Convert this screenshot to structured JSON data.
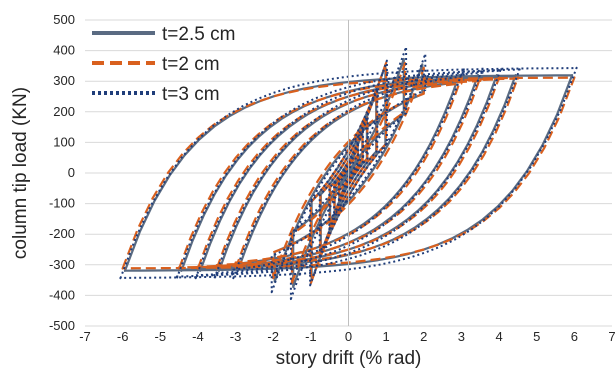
{
  "chart_data": {
    "type": "line",
    "title": "",
    "xlabel": "story drift (% rad)",
    "ylabel": "column tip load (KN)",
    "xlim": [
      -7,
      7
    ],
    "ylim": [
      -500,
      500
    ],
    "x_ticks": [
      "-7",
      "-6",
      "-5",
      "-4",
      "-3",
      "-2",
      "-1",
      "0",
      "1",
      "2",
      "3",
      "4",
      "5",
      "6",
      "7"
    ],
    "y_ticks": [
      "500",
      "400",
      "300",
      "200",
      "100",
      "0",
      "-100",
      "-200",
      "-300",
      "-400",
      "-500"
    ],
    "grid": "horizontal",
    "legend_position": "top-left",
    "cycle_drifts": [
      0.25,
      0.375,
      0.5,
      0.75,
      1.0,
      1.5,
      2.0,
      3.0,
      3.5,
      4.0,
      4.5,
      6.0
    ],
    "series": [
      {
        "name": "t=2.5 cm",
        "color": "#5a6b82",
        "dash": "solid",
        "peak_load": 390,
        "plateau_load": 290
      },
      {
        "name": "t=2 cm",
        "color": "#d9601e",
        "dash": "dashed",
        "peak_load": 375,
        "plateau_load": 285
      },
      {
        "name": "t=3 cm",
        "color": "#1f3d7a",
        "dash": "dotted",
        "peak_load": 435,
        "plateau_load": 305
      }
    ]
  }
}
